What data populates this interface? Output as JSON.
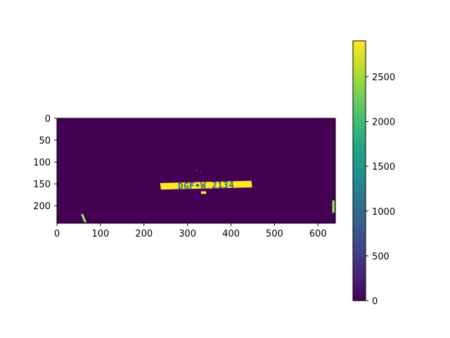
{
  "chart_data": {
    "type": "heatmap",
    "image_width": 640,
    "image_height": 240,
    "xlim": [
      0,
      640
    ],
    "ylim": [
      240,
      0
    ],
    "x_ticks": [
      0,
      100,
      200,
      300,
      400,
      500,
      600
    ],
    "y_ticks": [
      0,
      50,
      100,
      150,
      200
    ],
    "colorbar": {
      "colormap": "viridis",
      "vmin": 0,
      "vmax": 2900,
      "ticks": [
        0,
        500,
        1000,
        1500,
        2000,
        2500
      ]
    },
    "colors": {
      "background": "#440154",
      "high": "#fde725",
      "mid": "#21918c",
      "low_mid": "#3b528b"
    },
    "plate_text": "DGF•W 2134",
    "features": [
      {
        "kind": "plate",
        "corners": [
          [
            237,
            148
          ],
          [
            447,
            143
          ],
          [
            449,
            158
          ],
          [
            239,
            163
          ]
        ],
        "value": 2900
      },
      {
        "kind": "blob",
        "x": 337,
        "y": 170,
        "w": 12,
        "h": 6,
        "value": 2700
      },
      {
        "kind": "blob",
        "x": 321,
        "y": 119,
        "w": 3,
        "h": 3,
        "value": 1800
      },
      {
        "kind": "blob",
        "x": 331,
        "y": 124,
        "w": 2,
        "h": 3,
        "value": 1500
      },
      {
        "kind": "edge-left",
        "points": [
          [
            55,
            219
          ],
          [
            60,
            219
          ],
          [
            68,
            238
          ],
          [
            63,
            238
          ]
        ],
        "value": 2500
      },
      {
        "kind": "edge-right",
        "points": [
          [
            633,
            188
          ],
          [
            638,
            188
          ],
          [
            638,
            216
          ],
          [
            633,
            216
          ]
        ],
        "value": 2400
      }
    ]
  }
}
